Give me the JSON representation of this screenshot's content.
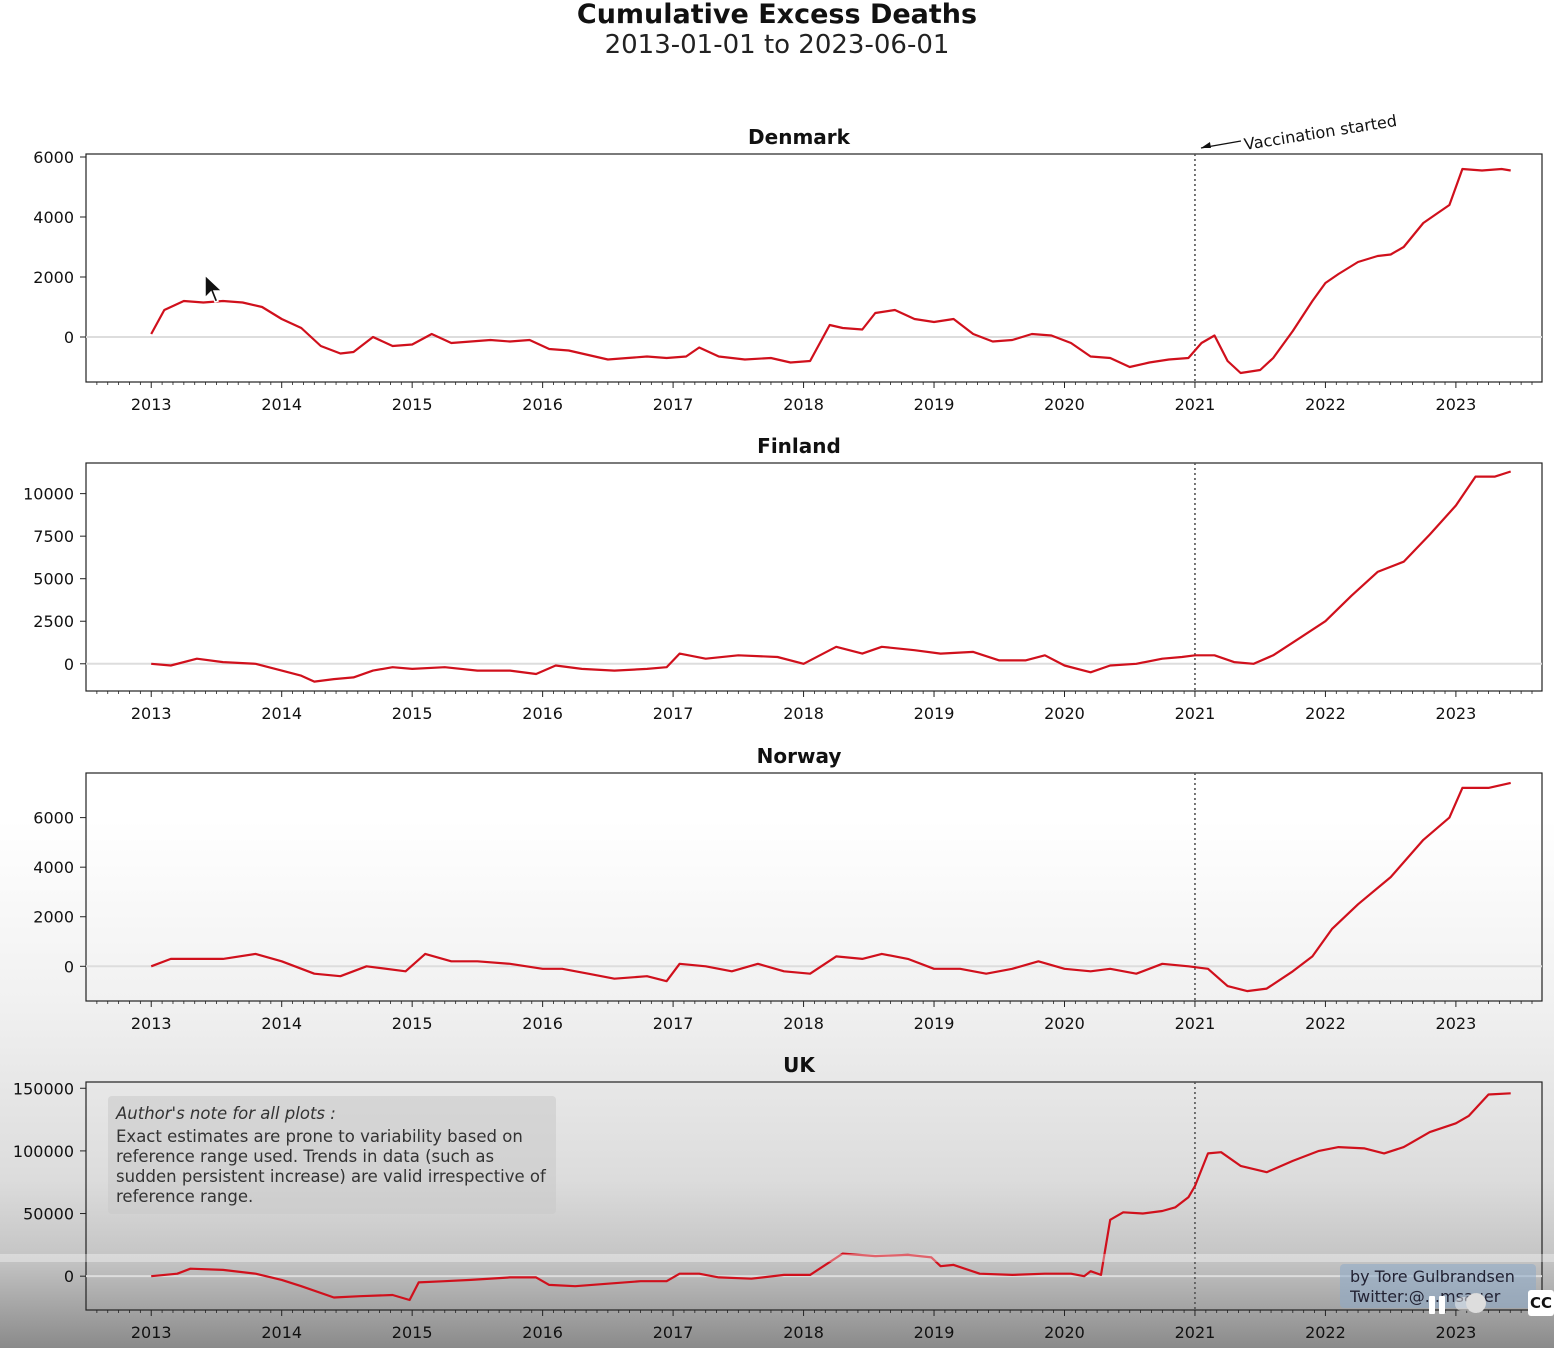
{
  "header": {
    "title": "Cumulative Excess Deaths",
    "subtitle": "2013-01-01 to 2023-06-01"
  },
  "annotation": {
    "vaccination_label": "Vaccination started",
    "vaccination_date": "2021-01-01"
  },
  "note": {
    "title": "Author's note for all plots :",
    "text": "Exact estimates are prone to variability based on reference range used. Trends in data (such as sudden persistent increase) are valid irrespective of reference range."
  },
  "credit": {
    "line1": "by Tore Gulbrandsen",
    "line2": "Twitter:@...msauer"
  },
  "player": {
    "cc_label": "CC",
    "icons": [
      "pause-icon",
      "autoplay-toggle-icon",
      "cc-icon"
    ]
  },
  "colors": {
    "series": "#d0101c",
    "zero_line": "#dddddd",
    "vline": "#555555"
  },
  "chart_data": [
    {
      "type": "line",
      "title": "Denmark",
      "x_ticks": [
        "2013",
        "2014",
        "2015",
        "2016",
        "2017",
        "2018",
        "2019",
        "2020",
        "2021",
        "2022",
        "2023"
      ],
      "y_ticks": [
        0,
        2000,
        4000,
        6000
      ],
      "ylim": [
        -1500,
        6100
      ],
      "show_vline": true,
      "x": [
        2013.0,
        2013.1,
        2013.25,
        2013.4,
        2013.55,
        2013.7,
        2013.85,
        2014.0,
        2014.15,
        2014.3,
        2014.45,
        2014.55,
        2014.7,
        2014.85,
        2015.0,
        2015.15,
        2015.3,
        2015.45,
        2015.6,
        2015.75,
        2015.9,
        2016.05,
        2016.2,
        2016.35,
        2016.5,
        2016.65,
        2016.8,
        2016.95,
        2017.1,
        2017.2,
        2017.35,
        2017.55,
        2017.75,
        2017.9,
        2018.05,
        2018.2,
        2018.3,
        2018.45,
        2018.55,
        2018.7,
        2018.85,
        2019.0,
        2019.15,
        2019.3,
        2019.45,
        2019.6,
        2019.75,
        2019.9,
        2020.05,
        2020.2,
        2020.35,
        2020.5,
        2020.65,
        2020.8,
        2020.95,
        2021.05,
        2021.15,
        2021.25,
        2021.35,
        2021.5,
        2021.6,
        2021.75,
        2021.9,
        2022.0,
        2022.1,
        2022.25,
        2022.4,
        2022.5,
        2022.6,
        2022.75,
        2022.85,
        2022.95,
        2023.05,
        2023.2,
        2023.35,
        2023.42
      ],
      "y": [
        100,
        900,
        1200,
        1150,
        1200,
        1150,
        1000,
        600,
        300,
        -300,
        -550,
        -500,
        0,
        -300,
        -250,
        100,
        -200,
        -150,
        -100,
        -150,
        -100,
        -400,
        -450,
        -600,
        -750,
        -700,
        -650,
        -700,
        -650,
        -350,
        -650,
        -750,
        -700,
        -850,
        -800,
        400,
        300,
        250,
        800,
        900,
        600,
        500,
        600,
        100,
        -150,
        -100,
        100,
        50,
        -200,
        -650,
        -700,
        -1000,
        -850,
        -750,
        -700,
        -200,
        50,
        -800,
        -1200,
        -1100,
        -700,
        200,
        1200,
        1800,
        2100,
        2500,
        2700,
        2750,
        3000,
        3800,
        4100,
        4400,
        5600,
        5550,
        5600,
        5550
      ]
    },
    {
      "type": "line",
      "title": "Finland",
      "x_ticks": [
        "2013",
        "2014",
        "2015",
        "2016",
        "2017",
        "2018",
        "2019",
        "2020",
        "2021",
        "2022",
        "2023"
      ],
      "y_ticks": [
        0,
        2500,
        5000,
        7500,
        10000
      ],
      "ylim": [
        -1600,
        11800
      ],
      "show_vline": true,
      "x": [
        2013.0,
        2013.15,
        2013.35,
        2013.55,
        2013.8,
        2014.0,
        2014.15,
        2014.25,
        2014.4,
        2014.55,
        2014.7,
        2014.85,
        2015.0,
        2015.25,
        2015.5,
        2015.75,
        2015.95,
        2016.1,
        2016.3,
        2016.55,
        2016.8,
        2016.95,
        2017.05,
        2017.25,
        2017.5,
        2017.8,
        2018.0,
        2018.25,
        2018.45,
        2018.6,
        2018.85,
        2019.05,
        2019.3,
        2019.5,
        2019.7,
        2019.85,
        2020.0,
        2020.2,
        2020.35,
        2020.55,
        2020.75,
        2020.9,
        2021.0,
        2021.15,
        2021.3,
        2021.45,
        2021.6,
        2021.8,
        2022.0,
        2022.2,
        2022.4,
        2022.6,
        2022.8,
        2023.0,
        2023.15,
        2023.3,
        2023.42
      ],
      "y": [
        0,
        -100,
        300,
        100,
        0,
        -400,
        -700,
        -1050,
        -900,
        -800,
        -400,
        -200,
        -300,
        -200,
        -400,
        -400,
        -600,
        -100,
        -300,
        -400,
        -300,
        -200,
        600,
        300,
        500,
        400,
        0,
        1000,
        600,
        1000,
        800,
        600,
        700,
        200,
        200,
        500,
        -100,
        -500,
        -100,
        0,
        300,
        400,
        500,
        500,
        100,
        0,
        500,
        1500,
        2500,
        4000,
        5400,
        6000,
        7600,
        9300,
        11000,
        11000,
        11300
      ]
    },
    {
      "type": "line",
      "title": "Norway",
      "x_ticks": [
        "2013",
        "2014",
        "2015",
        "2016",
        "2017",
        "2018",
        "2019",
        "2020",
        "2021",
        "2022",
        "2023"
      ],
      "y_ticks": [
        0,
        2000,
        4000,
        6000
      ],
      "ylim": [
        -1400,
        7800
      ],
      "show_vline": true,
      "x": [
        2013.0,
        2013.15,
        2013.35,
        2013.55,
        2013.8,
        2014.0,
        2014.25,
        2014.45,
        2014.65,
        2014.95,
        2015.1,
        2015.3,
        2015.5,
        2015.75,
        2016.0,
        2016.15,
        2016.35,
        2016.55,
        2016.8,
        2016.95,
        2017.05,
        2017.25,
        2017.45,
        2017.65,
        2017.85,
        2018.05,
        2018.25,
        2018.45,
        2018.6,
        2018.8,
        2019.0,
        2019.2,
        2019.4,
        2019.6,
        2019.8,
        2020.0,
        2020.2,
        2020.35,
        2020.55,
        2020.75,
        2020.95,
        2021.1,
        2021.25,
        2021.4,
        2021.55,
        2021.75,
        2021.9,
        2022.05,
        2022.25,
        2022.5,
        2022.75,
        2022.95,
        2023.05,
        2023.25,
        2023.42
      ],
      "y": [
        0,
        300,
        300,
        300,
        500,
        200,
        -300,
        -400,
        0,
        -200,
        500,
        200,
        200,
        100,
        -100,
        -100,
        -300,
        -500,
        -400,
        -600,
        100,
        0,
        -200,
        100,
        -200,
        -300,
        400,
        300,
        500,
        300,
        -100,
        -100,
        -300,
        -100,
        200,
        -100,
        -200,
        -100,
        -300,
        100,
        0,
        -100,
        -800,
        -1000,
        -900,
        -200,
        400,
        1500,
        2500,
        3600,
        5100,
        6000,
        7200,
        7200,
        7400
      ]
    },
    {
      "type": "line",
      "title": "UK",
      "x_ticks": [
        "2013",
        "2014",
        "2015",
        "2016",
        "2017",
        "2018",
        "2019",
        "2020",
        "2021",
        "2022",
        "2023"
      ],
      "y_ticks": [
        0,
        50000,
        100000,
        150000
      ],
      "ylim": [
        -27000,
        155000
      ],
      "show_vline": true,
      "x": [
        2013.0,
        2013.2,
        2013.3,
        2013.55,
        2013.8,
        2014.0,
        2014.15,
        2014.4,
        2014.6,
        2014.85,
        2014.98,
        2015.05,
        2015.25,
        2015.45,
        2015.75,
        2015.95,
        2016.05,
        2016.25,
        2016.5,
        2016.75,
        2016.95,
        2017.05,
        2017.2,
        2017.35,
        2017.6,
        2017.85,
        2017.98,
        2018.05,
        2018.3,
        2018.55,
        2018.8,
        2018.98,
        2019.05,
        2019.15,
        2019.35,
        2019.6,
        2019.85,
        2019.98,
        2020.05,
        2020.15,
        2020.2,
        2020.28,
        2020.35,
        2020.45,
        2020.6,
        2020.75,
        2020.85,
        2020.95,
        2021.0,
        2021.1,
        2021.2,
        2021.35,
        2021.55,
        2021.75,
        2021.95,
        2022.1,
        2022.3,
        2022.45,
        2022.6,
        2022.8,
        2023.0,
        2023.1,
        2023.25,
        2023.42
      ],
      "y": [
        0,
        2000,
        6000,
        5000,
        2000,
        -3000,
        -8000,
        -17000,
        -16000,
        -15000,
        -19000,
        -5000,
        -4000,
        -3000,
        -1000,
        -1000,
        -7000,
        -8000,
        -6000,
        -4000,
        -4000,
        2000,
        2000,
        -1000,
        -2000,
        1000,
        1000,
        1000,
        18000,
        16000,
        17000,
        15000,
        8000,
        9000,
        2000,
        1000,
        2000,
        2000,
        2000,
        0,
        4000,
        1000,
        45000,
        51000,
        50000,
        52000,
        55000,
        63000,
        72000,
        98000,
        99000,
        88000,
        83000,
        92000,
        100000,
        103000,
        102000,
        98000,
        103000,
        115000,
        122000,
        128000,
        145000,
        146000
      ]
    }
  ]
}
